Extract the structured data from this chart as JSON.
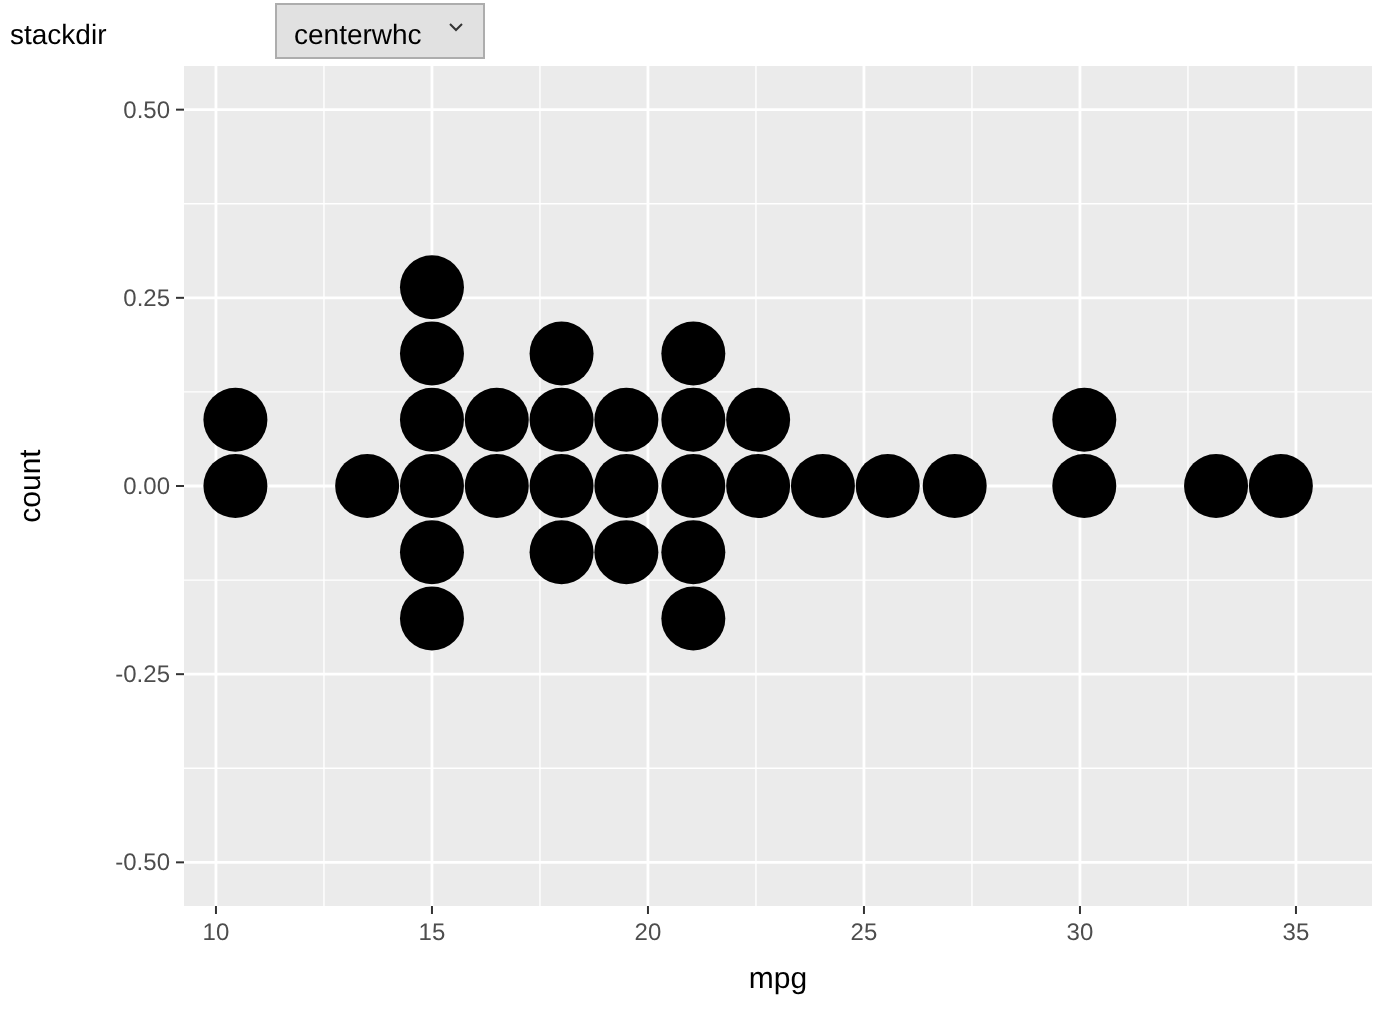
{
  "chart_data": {
    "type": "scatter",
    "xlabel": "mpg",
    "ylabel": "count",
    "color": "#000000",
    "marker": "circle",
    "grid": true,
    "x": [
      10.45,
      10.45,
      13.5,
      15.0,
      15.0,
      15.0,
      15.0,
      15.0,
      15.0,
      16.5,
      16.5,
      18.0,
      18.0,
      18.0,
      18.0,
      19.5,
      19.5,
      19.5,
      21.05,
      21.05,
      21.05,
      21.05,
      21.05,
      22.55,
      22.55,
      24.05,
      25.55,
      27.1,
      30.1,
      30.1,
      33.15,
      34.65
    ],
    "values": [
      0.088,
      0,
      0,
      0.264,
      0.176,
      0.088,
      0,
      -0.088,
      -0.176,
      0.088,
      0,
      0.176,
      0.088,
      0,
      -0.088,
      0.088,
      0,
      -0.088,
      0.176,
      0.088,
      0,
      -0.088,
      -0.176,
      0.088,
      0,
      0,
      0,
      0,
      0.088,
      0,
      0,
      0
    ],
    "xlim": [
      9.26,
      36.76
    ],
    "xticks": [
      10,
      15,
      20,
      25,
      30,
      35
    ],
    "ylim": [
      -0.558,
      0.558
    ],
    "yticks": [
      {
        "value": -0.5,
        "label": "-0.50"
      },
      {
        "value": -0.25,
        "label": "-0.25"
      },
      {
        "value": 0,
        "label": "0.00"
      },
      {
        "value": 0.25,
        "label": "0.25"
      },
      {
        "value": 0.5,
        "label": "0.50"
      }
    ],
    "annotations": [
      "stackdir",
      "centerwhc"
    ]
  }
}
